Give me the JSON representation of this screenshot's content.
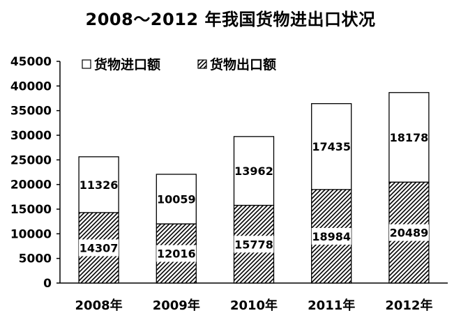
{
  "chart_data": {
    "type": "bar",
    "stacked": true,
    "title": "2008～2012 年我国货物进出口状况",
    "categories": [
      "2008年",
      "2009年",
      "2010年",
      "2011年",
      "2012年"
    ],
    "series": [
      {
        "name": "货物出口额",
        "values": [
          14307,
          12016,
          15778,
          18984,
          20489
        ],
        "pattern": "hatched"
      },
      {
        "name": "货物进口额",
        "values": [
          11326,
          10059,
          13962,
          17435,
          18178
        ],
        "pattern": "white"
      }
    ],
    "ylim": [
      0,
      45000
    ],
    "yticks": [
      0,
      5000,
      10000,
      15000,
      20000,
      25000,
      30000,
      35000,
      40000,
      45000
    ],
    "grid": false,
    "legend_position": "top-left",
    "colors": {
      "bar_stroke": "#000000",
      "hatch": "#000000",
      "fill": "#ffffff"
    }
  }
}
